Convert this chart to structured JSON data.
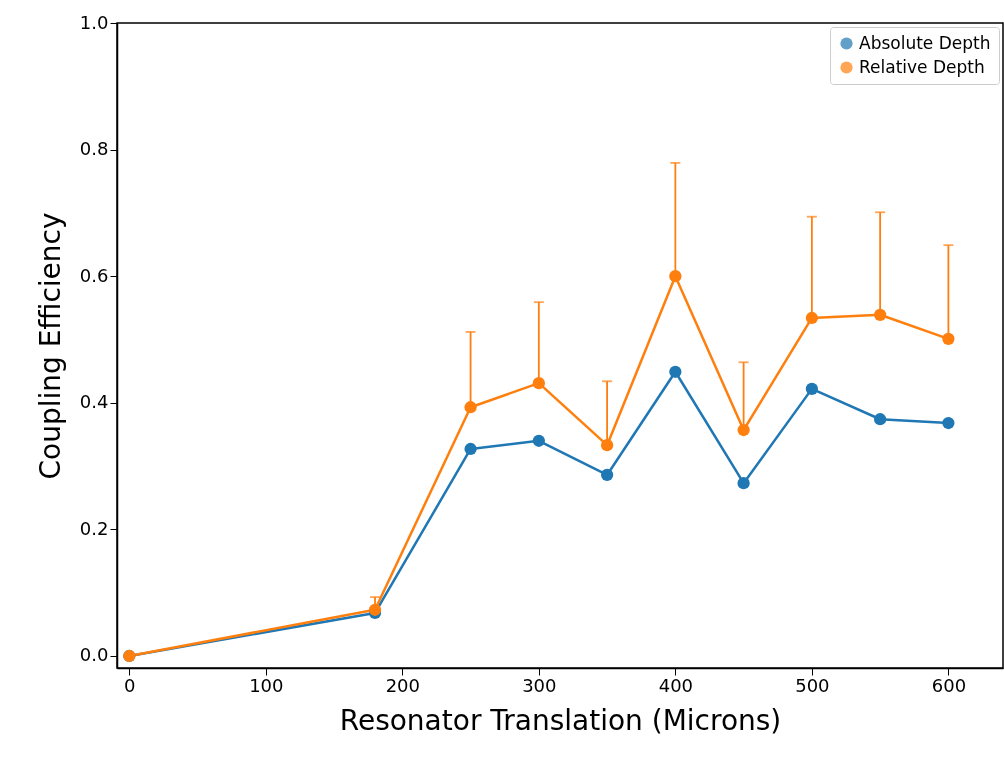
{
  "chart_data": {
    "type": "line",
    "xlabel": "Resonator Translation (Microns)",
    "ylabel": "Coupling Efficiency",
    "x": [
      0,
      180,
      250,
      300,
      350,
      400,
      450,
      500,
      550,
      600
    ],
    "series": [
      {
        "name": "Absolute Depth",
        "color": "#1f77b4",
        "values": [
          0,
          0.068,
          0.327,
          0.34,
          0.286,
          0.449,
          0.273,
          0.422,
          0.374,
          0.368
        ]
      },
      {
        "name": "Relative  Depth",
        "color": "#ff7f0e",
        "values": [
          0,
          0.073,
          0.393,
          0.431,
          0.333,
          0.6,
          0.357,
          0.534,
          0.539,
          0.501
        ],
        "errors": [
          null,
          [
            0.073,
            0.093
          ],
          [
            0.393,
            0.512
          ],
          [
            0.431,
            0.559
          ],
          [
            0.333,
            0.434
          ],
          [
            0.6,
            0.779
          ],
          [
            0.357,
            0.464
          ],
          [
            0.534,
            0.694
          ],
          [
            0.539,
            0.701
          ],
          [
            0.501,
            0.649
          ]
        ]
      }
    ],
    "xlim": [
      -9,
      640
    ],
    "ylim": [
      -0.019,
      1.0
    ],
    "xticks": [
      0,
      100,
      200,
      300,
      400,
      500,
      600
    ],
    "yticks": [
      {
        "value": 0,
        "label": "0.0"
      },
      0.2,
      0.4,
      0.6,
      0.8,
      {
        "value": 1.0,
        "label": "1.0"
      }
    ],
    "grid": false,
    "legend": "top right",
    "marker": "circle",
    "line_style": "solid"
  }
}
